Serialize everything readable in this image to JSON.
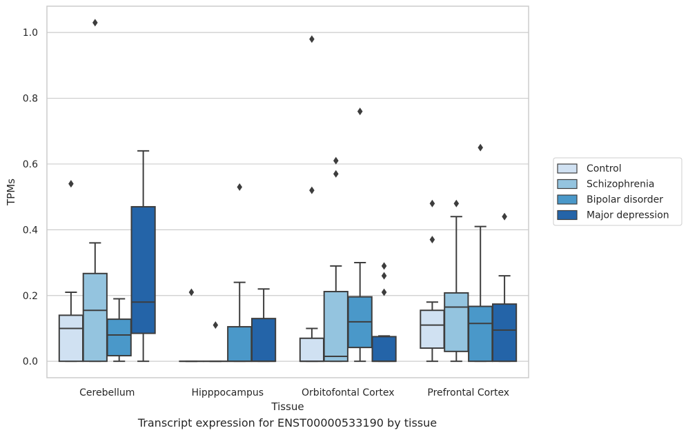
{
  "chart_data": {
    "type": "box",
    "xlabel": "Tissue",
    "ylabel": "TPMs",
    "ylim": [
      -0.05,
      1.08
    ],
    "yticks": [
      0.0,
      0.2,
      0.4,
      0.6,
      0.8,
      1.0
    ],
    "ytick_labels": [
      "0.0",
      "0.2",
      "0.4",
      "0.6",
      "0.8",
      "1.0"
    ],
    "grid": "horizontal",
    "legend_position": "right, outside plot",
    "categories": [
      "Cerebellum",
      "Hipppocampus",
      "Orbitofontal Cortex",
      "Prefrontal Cortex"
    ],
    "series": [
      {
        "name": "Control",
        "color": "#d0e1f2",
        "boxes": [
          {
            "whislo": 0.0,
            "q1": 0.0,
            "med": 0.1,
            "q3": 0.14,
            "whishi": 0.21,
            "fliers": [
              0.54
            ]
          },
          {
            "whislo": 0.0,
            "q1": 0.0,
            "med": 0.0,
            "q3": 0.0,
            "whishi": 0.0,
            "fliers": [
              0.21
            ]
          },
          {
            "whislo": 0.0,
            "q1": 0.0,
            "med": 0.0,
            "q3": 0.07,
            "whishi": 0.1,
            "fliers": [
              0.52,
              0.98
            ]
          },
          {
            "whislo": 0.0,
            "q1": 0.04,
            "med": 0.11,
            "q3": 0.155,
            "whishi": 0.18,
            "fliers": [
              0.37,
              0.48
            ]
          }
        ]
      },
      {
        "name": "Schizophrenia",
        "color": "#94c4df",
        "boxes": [
          {
            "whislo": 0.0,
            "q1": 0.0,
            "med": 0.155,
            "q3": 0.267,
            "whishi": 0.36,
            "fliers": [
              1.03
            ]
          },
          {
            "whislo": 0.0,
            "q1": 0.0,
            "med": 0.0,
            "q3": 0.0,
            "whishi": 0.0,
            "fliers": [
              0.11
            ]
          },
          {
            "whislo": 0.0,
            "q1": 0.0,
            "med": 0.015,
            "q3": 0.212,
            "whishi": 0.29,
            "fliers": [
              0.57,
              0.61
            ]
          },
          {
            "whislo": 0.0,
            "q1": 0.03,
            "med": 0.165,
            "q3": 0.208,
            "whishi": 0.44,
            "fliers": [
              0.48
            ]
          }
        ]
      },
      {
        "name": "Bipolar disorder",
        "color": "#4a98c9",
        "boxes": [
          {
            "whislo": 0.0,
            "q1": 0.017,
            "med": 0.08,
            "q3": 0.128,
            "whishi": 0.19,
            "fliers": []
          },
          {
            "whislo": 0.0,
            "q1": 0.0,
            "med": 0.0,
            "q3": 0.105,
            "whishi": 0.24,
            "fliers": [
              0.53
            ]
          },
          {
            "whislo": 0.0,
            "q1": 0.042,
            "med": 0.12,
            "q3": 0.196,
            "whishi": 0.3,
            "fliers": [
              0.76
            ]
          },
          {
            "whislo": 0.0,
            "q1": 0.0,
            "med": 0.115,
            "q3": 0.167,
            "whishi": 0.41,
            "fliers": [
              0.65
            ]
          }
        ]
      },
      {
        "name": "Major depression",
        "color": "#2464a8",
        "boxes": [
          {
            "whislo": 0.0,
            "q1": 0.085,
            "med": 0.18,
            "q3": 0.47,
            "whishi": 0.64,
            "fliers": []
          },
          {
            "whislo": 0.0,
            "q1": 0.0,
            "med": 0.0,
            "q3": 0.13,
            "whishi": 0.22,
            "fliers": []
          },
          {
            "whislo": 0.0,
            "q1": 0.0,
            "med": 0.0,
            "q3": 0.075,
            "whishi": 0.077,
            "fliers": [
              0.21,
              0.26,
              0.29
            ]
          },
          {
            "whislo": 0.0,
            "q1": 0.0,
            "med": 0.095,
            "q3": 0.174,
            "whishi": 0.26,
            "fliers": [
              0.44
            ]
          }
        ]
      }
    ]
  },
  "caption": "Transcript expression for ENST00000533190 by tissue"
}
